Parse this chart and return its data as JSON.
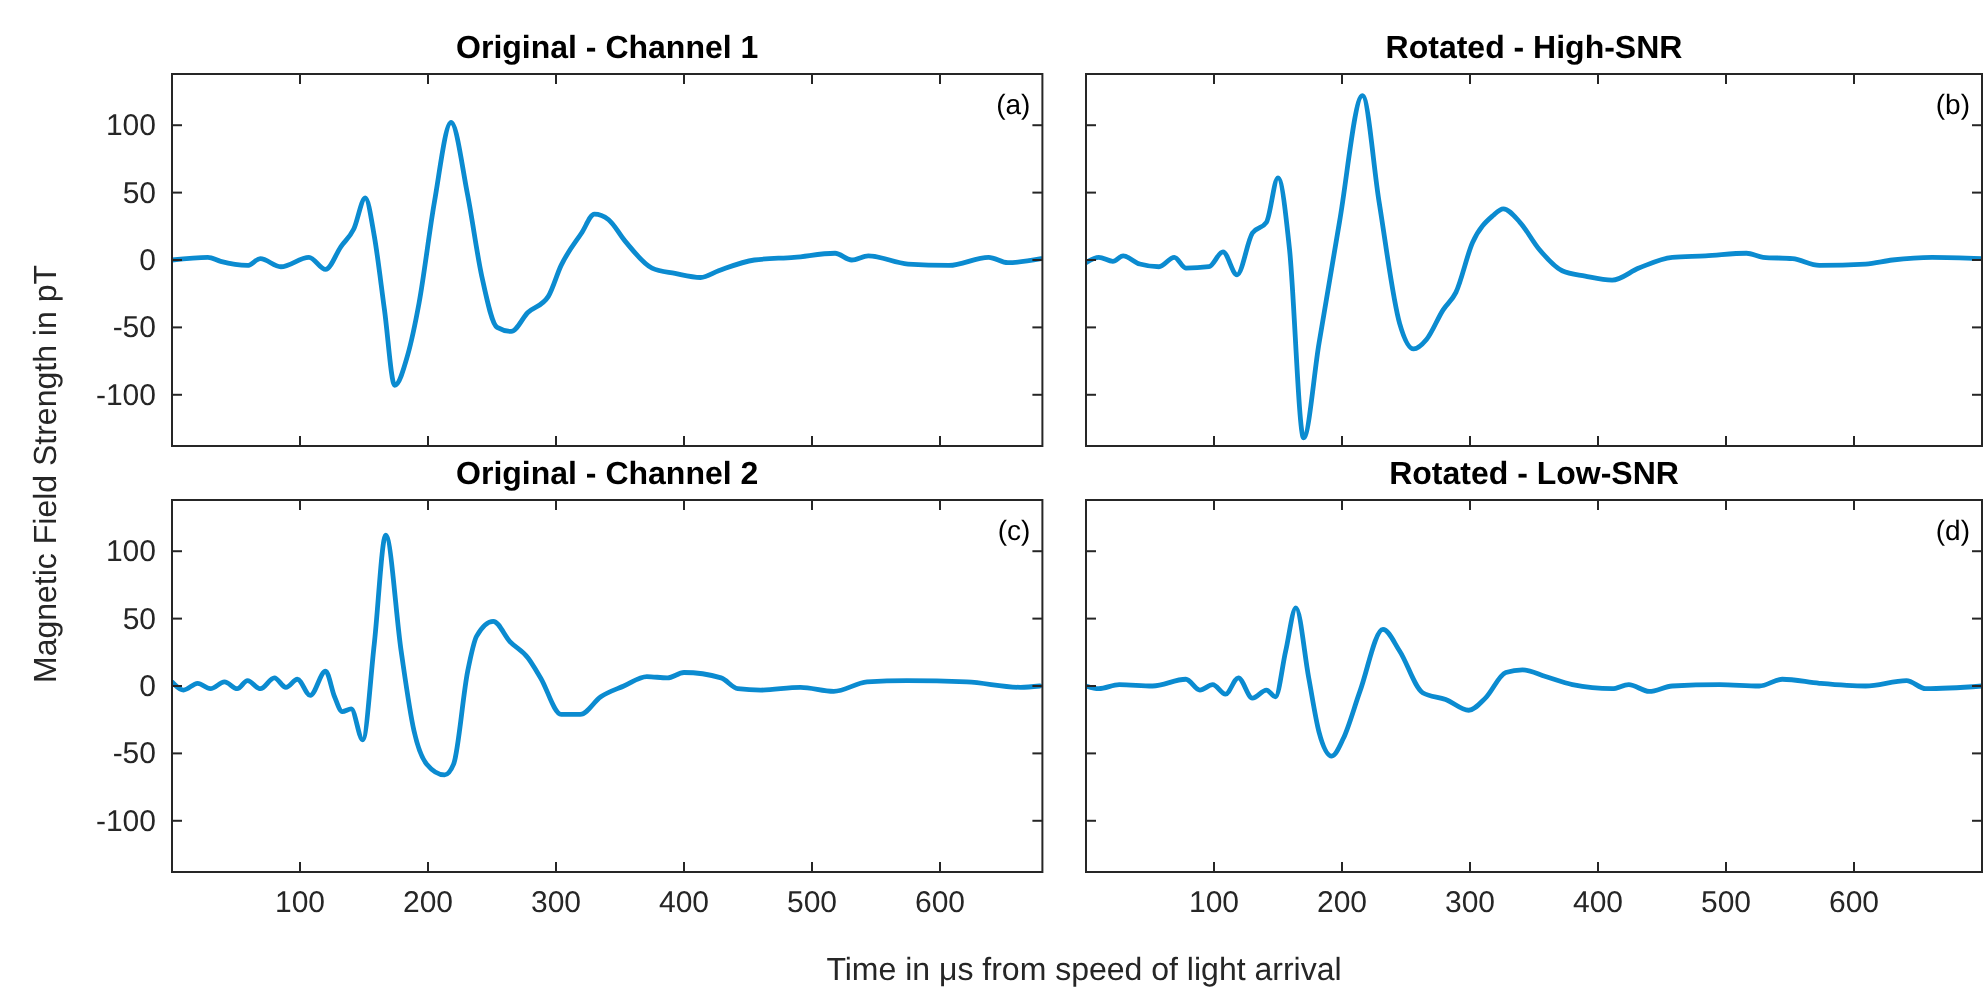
{
  "chart_data": [
    {
      "type": "line",
      "title": "Original - Channel 1",
      "ylabel": "Magnetic Field Strength in pT",
      "annotations": [
        "(a)"
      ],
      "xlim": [
        0,
        680
      ],
      "xticks": [
        100,
        200,
        300,
        400,
        500,
        600
      ],
      "ylim": [
        -138,
        138
      ],
      "yticks": [
        -100,
        -50,
        0,
        50,
        100
      ],
      "tick_labels": "y",
      "grid": false,
      "series": [
        {
          "color": "#0b8bd0",
          "x": [
            0,
            28,
            38,
            59,
            69,
            85,
            107,
            120,
            132,
            142,
            151,
            158,
            166,
            174,
            184,
            193,
            205,
            218,
            231,
            242,
            254,
            265,
            278,
            294,
            304,
            320,
            330,
            341,
            354,
            375,
            393,
            413,
            427,
            455,
            486,
            518,
            531,
            544,
            575,
            607,
            638,
            653,
            679
          ],
          "values": [
            0,
            2,
            -1,
            -4,
            1,
            -5,
            2,
            -7,
            10,
            23,
            46,
            18,
            -37,
            -93,
            -71,
            -32,
            43,
            102,
            48,
            -12,
            -50,
            -53,
            -39,
            -27,
            -4,
            20,
            34,
            30,
            14,
            -6,
            -10,
            -13,
            -8,
            0,
            2,
            5,
            0,
            3,
            -3,
            -4,
            2,
            -2,
            1
          ]
        }
      ]
    },
    {
      "type": "line",
      "title": "Rotated - High-SNR",
      "annotations": [
        "(b)"
      ],
      "xlim": [
        0,
        700
      ],
      "xticks": [
        100,
        200,
        300,
        400,
        500,
        600
      ],
      "ylim": [
        -138,
        138
      ],
      "yticks": [
        -100,
        -50,
        0,
        50,
        100
      ],
      "tick_labels": false,
      "grid": false,
      "series": [
        {
          "color": "#0b8bd0",
          "x": [
            0,
            10,
            21,
            29,
            42,
            57,
            69,
            78,
            96,
            107,
            118,
            130,
            141,
            150,
            159,
            170,
            182,
            198,
            216,
            229,
            245,
            256,
            266,
            279,
            289,
            302,
            318,
            326,
            339,
            354,
            372,
            390,
            411,
            432,
            458,
            484,
            516,
            529,
            552,
            573,
            609,
            630,
            661,
            700
          ],
          "values": [
            -2,
            2,
            -1,
            3,
            -3,
            -5,
            2,
            -6,
            -5,
            6,
            -11,
            20,
            28,
            61,
            8,
            -132,
            -62,
            28,
            122,
            43,
            -47,
            -66,
            -59,
            -37,
            -24,
            13,
            33,
            38,
            28,
            8,
            -8,
            -12,
            -15,
            -6,
            2,
            3,
            5,
            2,
            1,
            -4,
            -3,
            0,
            2,
            1
          ]
        }
      ]
    },
    {
      "type": "line",
      "title": "Original - Channel 2",
      "xlabel": "Time in μs from speed of light arrival",
      "annotations": [
        "(c)"
      ],
      "xlim": [
        0,
        680
      ],
      "xticks": [
        100,
        200,
        300,
        400,
        500,
        600
      ],
      "ylim": [
        -138,
        138
      ],
      "yticks": [
        -100,
        -50,
        0,
        50,
        100
      ],
      "grid": false,
      "series": [
        {
          "color": "#0b8bd0",
          "x": [
            0,
            9,
            20,
            30,
            41,
            51,
            59,
            69,
            80,
            89,
            98,
            108,
            120,
            127,
            133,
            140,
            149,
            158,
            167,
            179,
            189,
            199,
            213,
            220,
            231,
            238,
            251,
            264,
            278,
            288,
            304,
            319,
            335,
            353,
            371,
            387,
            400,
            429,
            442,
            460,
            491,
            517,
            543,
            574,
            621,
            663,
            678
          ],
          "values": [
            3,
            -3,
            2,
            -2,
            3,
            -2,
            4,
            -2,
            6,
            -1,
            5,
            -7,
            11,
            -8,
            -19,
            -17,
            -40,
            31,
            112,
            26,
            -33,
            -58,
            -66,
            -58,
            11,
            37,
            48,
            33,
            21,
            6,
            -21,
            -21,
            -8,
            0,
            7,
            6,
            10,
            6,
            -2,
            -3,
            -1,
            -4,
            3,
            4,
            3,
            -1,
            0
          ]
        }
      ]
    },
    {
      "type": "line",
      "title": "Rotated - Low-SNR",
      "annotations": [
        "(d)"
      ],
      "xlim": [
        0,
        700
      ],
      "xticks": [
        100,
        200,
        300,
        400,
        500,
        600
      ],
      "ylim": [
        -138,
        138
      ],
      "yticks": [
        -100,
        -50,
        0,
        50,
        100
      ],
      "tick_labels": "x",
      "grid": false,
      "series": [
        {
          "color": "#0b8bd0",
          "x": [
            0,
            10,
            26,
            52,
            78,
            89,
            99,
            109,
            119,
            130,
            141,
            148,
            156,
            164,
            174,
            182,
            192,
            201,
            214,
            232,
            245,
            263,
            281,
            299,
            312,
            328,
            341,
            359,
            380,
            411,
            424,
            440,
            458,
            495,
            526,
            544,
            573,
            609,
            641,
            656,
            700
          ],
          "values": [
            0,
            -2,
            1,
            0,
            5,
            -3,
            1,
            -6,
            6,
            -9,
            -3,
            -8,
            26,
            58,
            6,
            -34,
            -52,
            -39,
            -4,
            42,
            26,
            -5,
            -10,
            -18,
            -9,
            10,
            12,
            7,
            1,
            -2,
            1,
            -4,
            0,
            1,
            0,
            5,
            2,
            0,
            4,
            -2,
            0
          ]
        }
      ]
    }
  ]
}
